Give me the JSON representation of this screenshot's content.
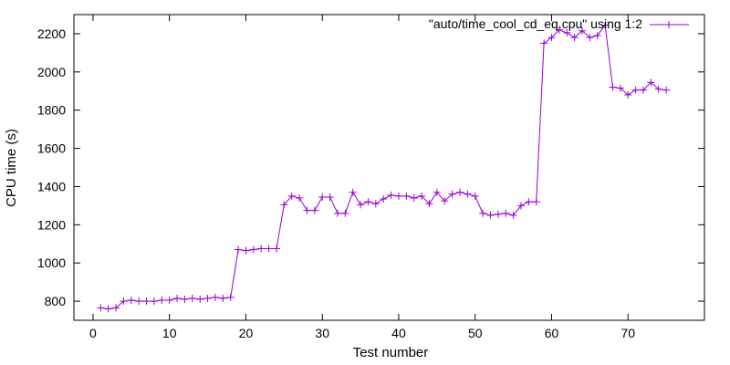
{
  "chart_data": {
    "type": "line",
    "title": "",
    "xlabel": "Test number",
    "ylabel": "CPU time (s)",
    "xlim": [
      -2.5,
      80
    ],
    "ylim": [
      700,
      2300
    ],
    "xticks": [
      0,
      10,
      20,
      30,
      40,
      50,
      60,
      70
    ],
    "yticks": [
      800,
      1000,
      1200,
      1400,
      1600,
      1800,
      2000,
      2200
    ],
    "grid": false,
    "legend_position": "top-right",
    "series": [
      {
        "name": "\"auto/time_cool_cd_eq.cpu\" using 1:2",
        "color": "#9400d3",
        "marker": "plus",
        "x": [
          1,
          2,
          3,
          4,
          5,
          6,
          7,
          8,
          9,
          10,
          11,
          12,
          13,
          14,
          15,
          16,
          17,
          18,
          19,
          20,
          21,
          22,
          23,
          24,
          25,
          26,
          27,
          28,
          29,
          30,
          31,
          32,
          33,
          34,
          35,
          36,
          37,
          38,
          39,
          40,
          41,
          42,
          43,
          44,
          45,
          46,
          47,
          48,
          49,
          50,
          51,
          52,
          53,
          54,
          55,
          56,
          57,
          58,
          59,
          60,
          61,
          62,
          63,
          64,
          65,
          66,
          67,
          68,
          69,
          70,
          71,
          72,
          73,
          74,
          75
        ],
        "y": [
          765,
          760,
          765,
          800,
          805,
          800,
          800,
          800,
          805,
          805,
          815,
          810,
          815,
          810,
          815,
          820,
          815,
          820,
          1070,
          1065,
          1070,
          1075,
          1075,
          1075,
          1305,
          1350,
          1340,
          1275,
          1275,
          1345,
          1345,
          1260,
          1260,
          1370,
          1305,
          1320,
          1310,
          1335,
          1355,
          1350,
          1350,
          1340,
          1350,
          1310,
          1370,
          1325,
          1360,
          1370,
          1360,
          1350,
          1260,
          1250,
          1255,
          1260,
          1250,
          1300,
          1320,
          1320,
          2150,
          2180,
          2220,
          2205,
          2180,
          2215,
          2180,
          2190,
          2245,
          1920,
          1915,
          1880,
          1905,
          1905,
          1945,
          1910,
          1905
        ]
      }
    ]
  }
}
